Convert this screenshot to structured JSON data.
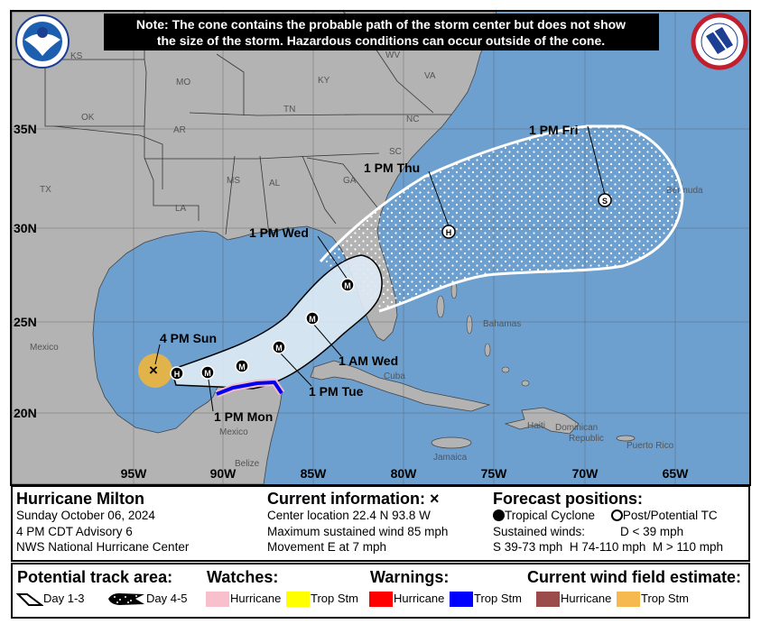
{
  "map": {
    "note_line1": "Note: The cone contains the probable path of the storm center but does not show",
    "note_line2": "the size of the storm. Hazardous conditions can occur outside of the cone.",
    "logo_left": "NOAA",
    "logo_right": "National Weather Service",
    "lat_labels": [
      "35N",
      "30N",
      "25N",
      "20N"
    ],
    "lon_labels": [
      "95W",
      "90W",
      "85W",
      "80W",
      "75W",
      "70W",
      "65W"
    ],
    "state_labels": [
      "KS",
      "MO",
      "WV",
      "VA",
      "KY",
      "OK",
      "AR",
      "TN",
      "NC",
      "SC",
      "MS",
      "AL",
      "GA",
      "TX",
      "LA"
    ],
    "place_labels": [
      "Bermuda",
      "Mexico",
      "Bahamas",
      "Cuba",
      "Mexico",
      "Belize",
      "Haiti",
      "Dominican",
      "Republic",
      "Jamaica",
      "Puerto Rico"
    ],
    "current_marker": "x-icon",
    "forecast_points": [
      {
        "time": "4 PM Sun",
        "type": "current"
      },
      {
        "time": "",
        "intensity": "H"
      },
      {
        "time": "1 PM Mon",
        "intensity": "M"
      },
      {
        "time": "",
        "intensity": "M"
      },
      {
        "time": "1 PM Tue",
        "intensity": "M"
      },
      {
        "time": "1 AM Wed",
        "intensity": "M"
      },
      {
        "time": "1 PM Wed",
        "intensity": "M"
      },
      {
        "time": "1 PM Thu",
        "intensity": "H"
      },
      {
        "time": "1 PM Fri",
        "intensity": "S"
      }
    ],
    "colors": {
      "ocean": "#6da0cf",
      "land": "#b3b3b3",
      "cone": "#dde9f4",
      "trop_storm_warning": "#0000ee",
      "hurricane_watch": "#f4b8c8",
      "trop_storm_wind": "#f0b64a"
    }
  },
  "info": {
    "storm_name": "Hurricane Milton",
    "date": "Sunday October 06, 2024",
    "advisory": "4 PM CDT Advisory 6",
    "agency": "NWS National Hurricane Center",
    "current_title": "Current information: ×",
    "center_location": "Center location 22.4 N 93.8 W",
    "max_wind": "Maximum sustained wind 85 mph",
    "movement": "Movement E at 7 mph",
    "forecast_title": "Forecast positions:",
    "tropical_cyclone": "Tropical Cyclone",
    "post_potential": "Post/Potential TC",
    "sustained_winds": "Sustained winds:",
    "d_def": "D < 39 mph",
    "s_def": "S 39-73 mph",
    "h_def": "H 74-110 mph",
    "m_def": "M > 110 mph"
  },
  "legend": {
    "track_title": "Potential track area:",
    "day13": "Day 1-3",
    "day45": "Day 4-5",
    "watches_title": "Watches:",
    "warnings_title": "Warnings:",
    "wind_title": "Current wind field estimate:",
    "hurricane": "Hurricane",
    "trop_stm": "Trop Stm",
    "colors": {
      "hurricane_watch": "#f7c0cc",
      "trop_stm_watch": "#ffff00",
      "hurricane_warning": "#ff0000",
      "trop_stm_warning": "#0000ff",
      "hurricane_wind": "#9c4b4b",
      "trop_stm_wind": "#f5b950"
    }
  }
}
